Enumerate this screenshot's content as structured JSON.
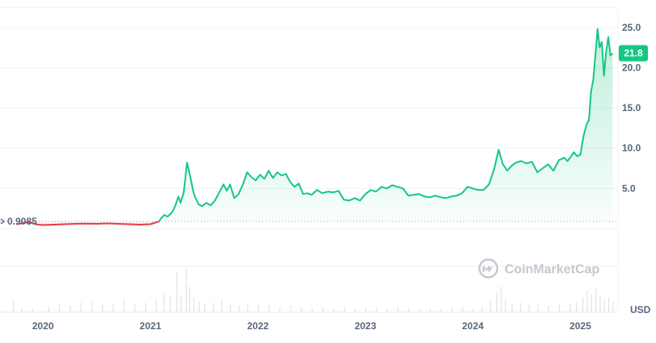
{
  "chart_data": {
    "type": "line",
    "title": "",
    "xlabel": "",
    "ylabel": "",
    "y_unit_label": "USD",
    "ylim": [
      0,
      27.5
    ],
    "y_ticks": [
      5,
      10,
      15,
      20,
      25
    ],
    "y_tick_labels": [
      "5.0",
      "10.0",
      "15.0",
      "20.0",
      "25.0"
    ],
    "x_ticks": [
      "2020",
      "2021",
      "2022",
      "2023",
      "2024",
      "2025"
    ],
    "x_tick_values": [
      2020.0,
      2021.0,
      2022.0,
      2023.0,
      2024.0,
      2025.0
    ],
    "xlim": [
      2019.6,
      2025.35
    ],
    "reference_price": 0.9085,
    "reference_label": "0.9085",
    "last_price": 21.8,
    "last_price_label": "21.8",
    "grid": true,
    "colors": {
      "above": "#16c784",
      "below": "#ea3943",
      "text": "#58667e",
      "grid": "#eff2f5"
    },
    "watermark": "CoinMarketCap",
    "series": [
      {
        "x": [
          2019.75,
          2019.8,
          2019.85,
          2019.9,
          2019.95,
          2020.0,
          2020.05,
          2020.1,
          2020.15,
          2020.2,
          2020.3,
          2020.4,
          2020.5,
          2020.6,
          2020.7,
          2020.8,
          2020.9,
          2021.0,
          2021.08,
          2021.1,
          2021.13,
          2021.16,
          2021.2,
          2021.23,
          2021.26,
          2021.28,
          2021.31,
          2021.34,
          2021.37,
          2021.4,
          2021.42,
          2021.45,
          2021.48,
          2021.52,
          2021.56,
          2021.6,
          2021.64,
          2021.68,
          2021.71,
          2021.74,
          2021.78,
          2021.82,
          2021.86,
          2021.9,
          2021.94,
          2021.98,
          2022.02,
          2022.06,
          2022.1,
          2022.14,
          2022.18,
          2022.22,
          2022.26,
          2022.3,
          2022.34,
          2022.38,
          2022.42,
          2022.46,
          2022.5,
          2022.55,
          2022.6,
          2022.65,
          2022.7,
          2022.75,
          2022.8,
          2022.85,
          2022.9,
          2022.95,
          2023.0,
          2023.05,
          2023.1,
          2023.15,
          2023.2,
          2023.25,
          2023.3,
          2023.35,
          2023.4,
          2023.45,
          2023.5,
          2023.55,
          2023.6,
          2023.65,
          2023.7,
          2023.75,
          2023.8,
          2023.85,
          2023.9,
          2023.95,
          2024.0,
          2024.05,
          2024.1,
          2024.15,
          2024.2,
          2024.24,
          2024.28,
          2024.32,
          2024.36,
          2024.4,
          2024.45,
          2024.5,
          2024.55,
          2024.6,
          2024.65,
          2024.7,
          2024.75,
          2024.8,
          2024.85,
          2024.88,
          2024.91,
          2024.94,
          2024.97,
          2025.0,
          2025.03,
          2025.06,
          2025.08,
          2025.1,
          2025.12,
          2025.14,
          2025.16,
          2025.18,
          2025.2,
          2025.22,
          2025.24,
          2025.26,
          2025.28,
          2025.3
        ],
        "values": [
          0.55,
          0.65,
          0.8,
          0.7,
          0.5,
          0.45,
          0.48,
          0.5,
          0.52,
          0.55,
          0.6,
          0.62,
          0.6,
          0.65,
          0.6,
          0.55,
          0.5,
          0.55,
          0.9,
          1.3,
          1.7,
          1.5,
          2.0,
          2.8,
          4.0,
          3.2,
          4.5,
          8.2,
          6.5,
          4.5,
          3.8,
          3.0,
          2.8,
          3.2,
          2.9,
          3.5,
          4.5,
          5.5,
          4.7,
          5.5,
          3.8,
          4.3,
          5.5,
          7.0,
          6.4,
          6.0,
          6.7,
          6.2,
          7.2,
          6.3,
          7.0,
          6.6,
          6.8,
          5.8,
          5.2,
          5.6,
          4.3,
          4.4,
          4.2,
          4.8,
          4.4,
          4.6,
          4.5,
          4.7,
          3.6,
          3.5,
          3.8,
          3.5,
          4.3,
          4.8,
          4.6,
          5.2,
          5.0,
          5.4,
          5.2,
          5.0,
          4.1,
          4.2,
          4.3,
          4.0,
          3.9,
          4.1,
          3.9,
          3.8,
          4.0,
          4.1,
          4.4,
          5.2,
          5.0,
          4.8,
          4.8,
          5.5,
          7.5,
          9.8,
          8.0,
          7.2,
          7.8,
          8.2,
          8.4,
          8.1,
          8.3,
          7.0,
          7.5,
          8.0,
          7.2,
          8.5,
          8.8,
          8.4,
          8.9,
          9.5,
          9.0,
          9.2,
          11.5,
          13.0,
          13.5,
          17.0,
          18.5,
          21.5,
          24.8,
          22.5,
          23.2,
          19.0,
          22.0,
          23.8,
          21.5,
          21.8
        ]
      }
    ],
    "volume": {
      "x": [
        2019.72,
        2019.8,
        2019.9,
        2020.05,
        2020.15,
        2020.25,
        2020.35,
        2020.45,
        2020.55,
        2020.65,
        2020.75,
        2020.85,
        2020.95,
        2021.05,
        2021.12,
        2021.18,
        2021.24,
        2021.28,
        2021.33,
        2021.36,
        2021.4,
        2021.45,
        2021.5,
        2021.58,
        2021.66,
        2021.74,
        2021.82,
        2021.9,
        2022.0,
        2022.1,
        2022.2,
        2022.3,
        2022.4,
        2022.5,
        2022.6,
        2022.7,
        2022.8,
        2022.9,
        2023.0,
        2023.1,
        2023.2,
        2023.3,
        2023.4,
        2023.5,
        2023.6,
        2023.7,
        2023.8,
        2023.9,
        2024.0,
        2024.08,
        2024.16,
        2024.22,
        2024.26,
        2024.3,
        2024.36,
        2024.44,
        2024.52,
        2024.6,
        2024.7,
        2024.8,
        2024.9,
        2024.96,
        2025.02,
        2025.06,
        2025.1,
        2025.14,
        2025.18,
        2025.22,
        2025.26,
        2025.3
      ],
      "values": [
        0.3,
        0.1,
        0.08,
        0.12,
        0.2,
        0.15,
        0.22,
        0.25,
        0.18,
        0.2,
        0.28,
        0.2,
        0.22,
        0.3,
        0.45,
        0.35,
        0.95,
        0.4,
        1.0,
        0.6,
        0.35,
        0.25,
        0.2,
        0.22,
        0.3,
        0.18,
        0.15,
        0.2,
        0.18,
        0.15,
        0.12,
        0.14,
        0.12,
        0.1,
        0.12,
        0.1,
        0.12,
        0.08,
        0.1,
        0.12,
        0.1,
        0.12,
        0.1,
        0.08,
        0.1,
        0.08,
        0.1,
        0.12,
        0.1,
        0.12,
        0.25,
        0.45,
        0.6,
        0.3,
        0.2,
        0.22,
        0.18,
        0.2,
        0.15,
        0.18,
        0.2,
        0.25,
        0.35,
        0.5,
        0.4,
        0.55,
        0.38,
        0.3,
        0.35,
        0.25
      ]
    }
  }
}
